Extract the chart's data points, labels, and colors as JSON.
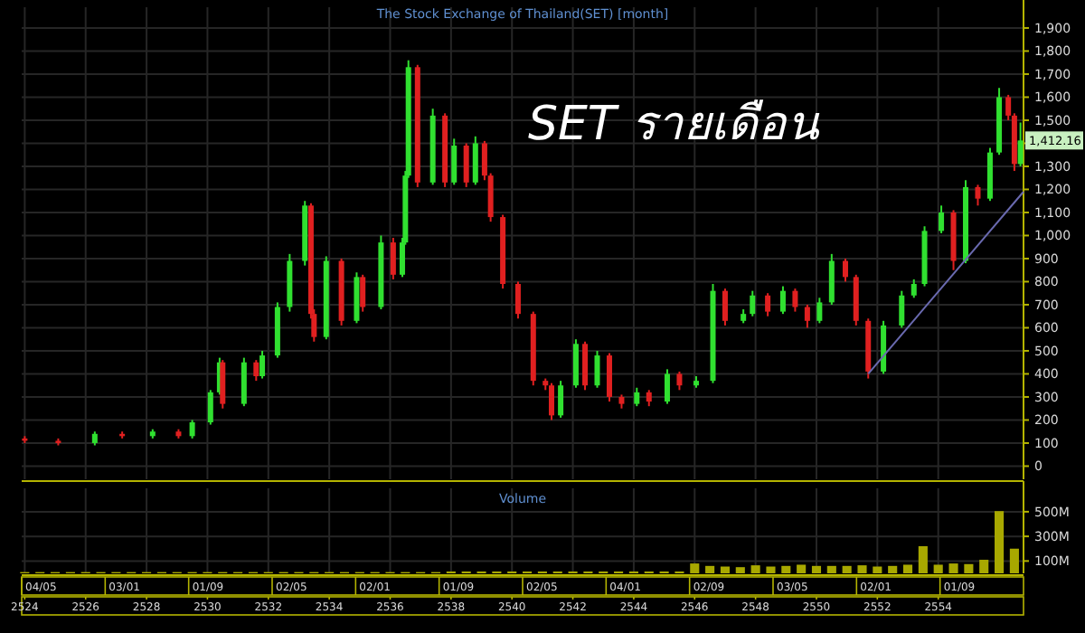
{
  "chart_data": [
    {
      "type": "candlestick",
      "title": "The Stock Exchange of Thailand(SET) [month]",
      "subtitle": "SET รายเดือน",
      "annotations": [
        "1,412.16"
      ],
      "series": [
        {
          "type": "candlestick",
          "x": [
            2524.0,
            2525.1,
            2526.3,
            2527.2,
            2528.2,
            2529.05,
            2529.5,
            2530.1,
            2530.4,
            2530.5,
            2531.2,
            2531.6,
            2531.8,
            2532.3,
            2532.7,
            2533.2,
            2533.4,
            2533.5,
            2533.9,
            2534.4,
            2534.9,
            2535.1,
            2535.7,
            2536.1,
            2536.4,
            2536.5,
            2536.6,
            2536.9,
            2537.4,
            2537.8,
            2538.1,
            2538.5,
            2538.8,
            2539.1,
            2539.3,
            2539.7,
            2540.2,
            2540.7,
            2541.1,
            2541.3,
            2541.6,
            2542.1,
            2542.4,
            2542.8,
            2543.2,
            2543.6,
            2544.1,
            2544.5,
            2545.1,
            2545.5,
            2546.05,
            2546.6,
            2547.0,
            2547.6,
            2547.9,
            2548.4,
            2548.9,
            2549.3,
            2549.7,
            2550.1,
            2550.5,
            2550.95,
            2551.3,
            2551.7,
            2552.2,
            2552.8,
            2553.2,
            2553.55,
            2554.1,
            2554.5,
            2554.9,
            2555.3,
            2555.7,
            2556.0,
            2556.3,
            2556.5,
            2556.7
          ],
          "ohlc": [
            [
              120,
              130,
              100,
              110
            ],
            [
              110,
              120,
              90,
              100
            ],
            [
              100,
              150,
              90,
              140
            ],
            [
              140,
              150,
              120,
              130
            ],
            [
              130,
              160,
              120,
              150
            ],
            [
              150,
              160,
              120,
              130
            ],
            [
              130,
              200,
              120,
              190
            ],
            [
              190,
              330,
              180,
              320
            ],
            [
              320,
              470,
              310,
              450
            ],
            [
              450,
              460,
              250,
              270
            ],
            [
              270,
              470,
              260,
              450
            ],
            [
              450,
              460,
              370,
              390
            ],
            [
              390,
              500,
              380,
              480
            ],
            [
              480,
              710,
              470,
              690
            ],
            [
              690,
              920,
              670,
              890
            ],
            [
              890,
              1150,
              870,
              1130
            ],
            [
              1130,
              1140,
              640,
              660
            ],
            [
              660,
              680,
              540,
              560
            ],
            [
              560,
              910,
              550,
              890
            ],
            [
              890,
              900,
              610,
              630
            ],
            [
              630,
              840,
              620,
              820
            ],
            [
              820,
              830,
              670,
              690
            ],
            [
              690,
              1000,
              680,
              970
            ],
            [
              970,
              990,
              810,
              830
            ],
            [
              830,
              990,
              820,
              970
            ],
            [
              970,
              1280,
              960,
              1260
            ],
            [
              1260,
              1760,
              1250,
              1730
            ],
            [
              1730,
              1740,
              1210,
              1230
            ],
            [
              1230,
              1550,
              1220,
              1520
            ],
            [
              1520,
              1530,
              1210,
              1230
            ],
            [
              1230,
              1420,
              1220,
              1390
            ],
            [
              1390,
              1400,
              1210,
              1230
            ],
            [
              1230,
              1430,
              1220,
              1400
            ],
            [
              1400,
              1410,
              1240,
              1260
            ],
            [
              1260,
              1270,
              1060,
              1080
            ],
            [
              1080,
              1090,
              770,
              790
            ],
            [
              790,
              800,
              640,
              660
            ],
            [
              660,
              670,
              350,
              370
            ],
            [
              370,
              380,
              330,
              350
            ],
            [
              350,
              360,
              200,
              220
            ],
            [
              220,
              370,
              210,
              350
            ],
            [
              350,
              550,
              340,
              530
            ],
            [
              530,
              540,
              330,
              350
            ],
            [
              350,
              500,
              340,
              480
            ],
            [
              480,
              490,
              280,
              300
            ],
            [
              300,
              310,
              250,
              270
            ],
            [
              270,
              340,
              260,
              320
            ],
            [
              320,
              330,
              260,
              280
            ],
            [
              280,
              420,
              270,
              400
            ],
            [
              400,
              410,
              330,
              350
            ],
            [
              350,
              390,
              340,
              370
            ],
            [
              370,
              790,
              360,
              760
            ],
            [
              760,
              770,
              610,
              630
            ],
            [
              630,
              680,
              620,
              660
            ],
            [
              660,
              760,
              650,
              740
            ],
            [
              740,
              750,
              650,
              670
            ],
            [
              670,
              780,
              660,
              760
            ],
            [
              760,
              770,
              670,
              690
            ],
            [
              690,
              700,
              600,
              630
            ],
            [
              630,
              730,
              620,
              710
            ],
            [
              710,
              920,
              700,
              890
            ],
            [
              890,
              900,
              800,
              820
            ],
            [
              820,
              830,
              610,
              630
            ],
            [
              630,
              640,
              380,
              410
            ],
            [
              410,
              630,
              400,
              610
            ],
            [
              610,
              760,
              600,
              740
            ],
            [
              740,
              810,
              730,
              790
            ],
            [
              790,
              1040,
              780,
              1020
            ],
            [
              1020,
              1130,
              1010,
              1100
            ],
            [
              1100,
              1110,
              850,
              890
            ],
            [
              890,
              1240,
              880,
              1210
            ],
            [
              1210,
              1220,
              1130,
              1160
            ],
            [
              1160,
              1380,
              1150,
              1360
            ],
            [
              1360,
              1640,
              1350,
              1600
            ],
            [
              1600,
              1610,
              1500,
              1520
            ],
            [
              1520,
              1530,
              1280,
              1310
            ],
            [
              1310,
              1490,
              1300,
              1412.16
            ]
          ],
          "colors": [
            "#e02020",
            "#e02020",
            "#30e030",
            "#e02020",
            "#30e030",
            "#e02020",
            "#30e030",
            "#30e030",
            "#30e030",
            "#e02020",
            "#30e030",
            "#e02020",
            "#30e030",
            "#30e030",
            "#30e030",
            "#30e030",
            "#e02020",
            "#e02020",
            "#30e030",
            "#e02020",
            "#30e030",
            "#e02020",
            "#30e030",
            "#e02020",
            "#30e030",
            "#30e030",
            "#30e030",
            "#e02020",
            "#30e030",
            "#e02020",
            "#30e030",
            "#e02020",
            "#30e030",
            "#e02020",
            "#e02020",
            "#e02020",
            "#e02020",
            "#e02020",
            "#e02020",
            "#e02020",
            "#30e030",
            "#30e030",
            "#e02020",
            "#30e030",
            "#e02020",
            "#e02020",
            "#30e030",
            "#e02020",
            "#30e030",
            "#e02020",
            "#30e030",
            "#30e030",
            "#e02020",
            "#30e030",
            "#30e030",
            "#e02020",
            "#30e030",
            "#e02020",
            "#e02020",
            "#30e030",
            "#30e030",
            "#e02020",
            "#e02020",
            "#e02020",
            "#30e030",
            "#30e030",
            "#30e030",
            "#30e030",
            "#30e030",
            "#e02020",
            "#30e030",
            "#e02020",
            "#30e030",
            "#30e030",
            "#e02020",
            "#e02020",
            "#30e030"
          ]
        },
        {
          "type": "line",
          "x": [
            2551.7,
            2556.8
          ],
          "values": [
            400,
            1190
          ],
          "color": "#6a6ab0"
        }
      ],
      "xlim": [
        2523.9,
        2556.8
      ],
      "xticks": [
        2524,
        2526,
        2528,
        2530,
        2532,
        2534,
        2536,
        2538,
        2540,
        2542,
        2544,
        2546,
        2548,
        2550,
        2552,
        2554
      ],
      "ylim": [
        -57,
        1990
      ],
      "yticks": [
        0,
        100,
        200,
        300,
        400,
        500,
        600,
        700,
        800,
        900,
        {
          "value": 1000,
          "label": "1,000"
        },
        {
          "value": 1100,
          "label": "1,100"
        },
        {
          "value": 1200,
          "label": "1,200"
        },
        {
          "value": 1300,
          "label": "1,300"
        },
        {
          "value": 1400,
          "label": null
        },
        {
          "value": 1500,
          "label": "1,500"
        },
        {
          "value": 1600,
          "label": "1,600"
        },
        {
          "value": 1700,
          "label": "1,700"
        },
        {
          "value": 1800,
          "label": "1,800"
        },
        {
          "value": 1900,
          "label": "1,900"
        }
      ],
      "grid": true,
      "tick_labels": "y"
    },
    {
      "type": "bar",
      "title": "Volume",
      "color": "#a8a800",
      "x": [
        2524,
        2524.5,
        2525,
        2525.5,
        2526,
        2526.5,
        2527,
        2527.5,
        2528,
        2528.5,
        2529,
        2529.5,
        2530,
        2530.5,
        2531,
        2531.5,
        2532,
        2532.5,
        2533,
        2533.5,
        2534,
        2534.5,
        2535,
        2535.5,
        2536,
        2536.5,
        2537,
        2537.5,
        2538,
        2538.5,
        2539,
        2539.5,
        2540,
        2540.5,
        2541,
        2541.5,
        2542,
        2542.5,
        2543,
        2543.5,
        2544,
        2544.5,
        2545,
        2545.5,
        2546,
        2546.5,
        2547,
        2547.5,
        2548,
        2548.5,
        2549,
        2549.5,
        2550,
        2550.5,
        2551,
        2551.5,
        2552,
        2552.5,
        2553,
        2553.5,
        2554,
        2554.5,
        2555,
        2555.5,
        2556,
        2556.5
      ],
      "values": [
        10,
        10,
        10,
        10,
        10,
        10,
        10,
        10,
        10,
        10,
        10,
        10,
        10,
        10,
        10,
        10,
        10,
        10,
        10,
        10,
        10,
        10,
        10,
        10,
        10,
        10,
        10,
        10,
        15,
        15,
        15,
        15,
        15,
        15,
        15,
        15,
        15,
        15,
        15,
        15,
        15,
        15,
        15,
        15,
        80,
        60,
        55,
        50,
        65,
        55,
        60,
        70,
        60,
        60,
        60,
        65,
        55,
        60,
        70,
        220,
        70,
        80,
        75,
        110,
        505,
        200
      ],
      "annotations": [
        "04/05",
        "03/01",
        "01/09",
        "02/05",
        "02/01",
        "01/09",
        "02/05",
        "04/01",
        "02/09",
        "03/05",
        "02/01",
        "01/09"
      ],
      "xlim": [
        2523.9,
        2556.8
      ],
      "xticks": [
        2524,
        2526,
        2528,
        2530,
        2532,
        2534,
        2536,
        2538,
        2540,
        2542,
        2544,
        2546,
        2548,
        2550,
        2552,
        2554
      ],
      "ylim": [
        0,
        690
      ],
      "yticks": [
        {
          "value": 100,
          "label": "100M"
        },
        {
          "value": 300,
          "label": "300M"
        },
        {
          "value": 500,
          "label": "500M"
        }
      ],
      "grid": true
    }
  ]
}
